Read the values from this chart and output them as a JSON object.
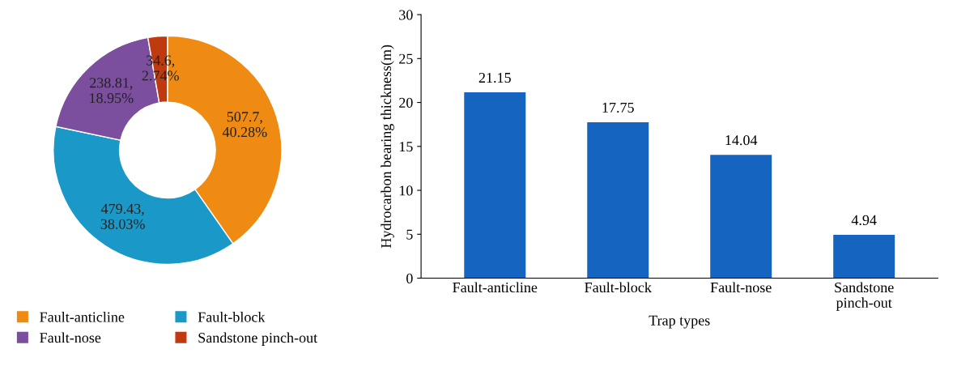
{
  "chart_data": [
    {
      "type": "donut",
      "categories": [
        "Fault-anticline",
        "Fault-block",
        "Fault-nose",
        "Sandstone pinch-out"
      ],
      "values": [
        507.7,
        479.43,
        238.81,
        34.6
      ],
      "colors": [
        "#ef8a12",
        "#1a98c8",
        "#7b4f9d",
        "#c03a10"
      ],
      "value_labels": [
        "507.7,\n40.28%",
        "479.43,\n38.03%",
        "238.81,\n18.95%",
        "34.6,\n2.74%"
      ],
      "legend": "bottom"
    },
    {
      "type": "bar",
      "categories": [
        "Fault-anticline",
        "Fault-block",
        "Fault-nose",
        "Sandstone\npinch-out"
      ],
      "values": [
        21.15,
        17.75,
        14.04,
        4.94
      ],
      "color": "#1565c0",
      "xlabel": "Trap types",
      "ylabel": "Hydrocarbon bearing thickness(m)",
      "ylim": [
        0,
        30
      ],
      "yticks": [
        0,
        5,
        10,
        15,
        20,
        25,
        30
      ],
      "data_labels": true,
      "grid": false
    }
  ]
}
